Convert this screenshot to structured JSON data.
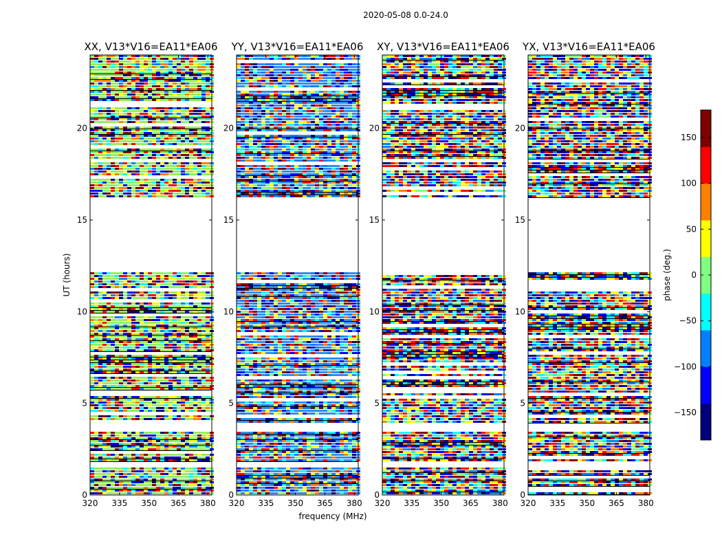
{
  "chart_data": {
    "type": "heatmap",
    "title": "2020-05-08 0.0-24.0",
    "xlabel": "frequency (MHz)",
    "ylabel": "UT (hours)",
    "colorbar_label": "phase (deg.)",
    "xlim": [
      320,
      382
    ],
    "ylim": [
      0,
      24
    ],
    "xticks": [
      320,
      335,
      350,
      365,
      380
    ],
    "yticks": [
      0,
      5,
      10,
      15,
      20
    ],
    "colorbar_range": [
      -180,
      180
    ],
    "colorbar_ticks": [
      -150,
      -100,
      -50,
      0,
      50,
      100,
      150
    ],
    "colorbar_tick_labels": [
      "−150",
      "−100",
      "−50",
      "0",
      "50",
      "100",
      "150"
    ],
    "colormap": [
      "#00007f",
      "#0000ff",
      "#007fff",
      "#00ffff",
      "#7fff7f",
      "#ffff00",
      "#ff7f00",
      "#ff0000",
      "#7f0000"
    ],
    "data_gaps_hours": [
      [
        12.2,
        16.3
      ],
      [
        3.6,
        3.9
      ],
      [
        1.6,
        1.8
      ]
    ],
    "panels": [
      {
        "title": "XX, V13*V16=EA11*EA06",
        "bias": "#9aeb5a"
      },
      {
        "title": "YY, V13*V16=EA11*EA06",
        "bias": "#2f8cf0"
      },
      {
        "title": "XY, V13*V16=EA11*EA06",
        "bias": ""
      },
      {
        "title": "YX, V13*V16=EA11*EA06",
        "bias": ""
      }
    ]
  }
}
